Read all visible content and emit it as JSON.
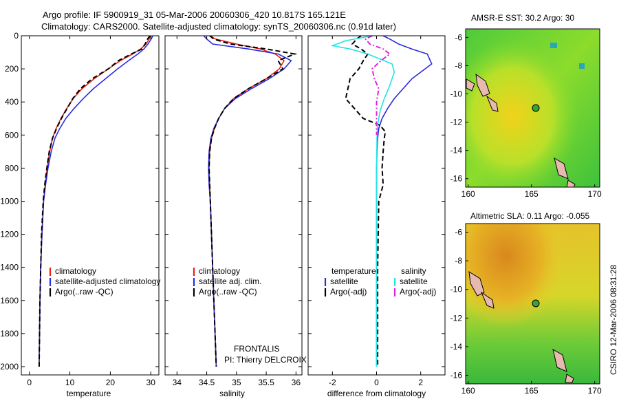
{
  "figure": {
    "title_line1": "Argo profile: IF 5900919_31 05-Mar-2006 20060306_420 10.817S 165.121E",
    "title_line2": "Climatology: CARS2000. Satellite-adjusted climatology: synTS_20060306.nc (0.91d later)",
    "side_stamp": "CSIRO 12-Mar-2006 08:31:28",
    "pi_line1": "FRONTALIS",
    "pi_line2": "PI: Thierry DELCROIX"
  },
  "colors": {
    "climatology": "#e8200f",
    "satellite": "#2a2ae0",
    "argo": "#000000",
    "sat_salinity": "#22e4e4",
    "argo_salinity": "#e020e0"
  },
  "chart_data": [
    {
      "type": "line",
      "xlabel": "temperature",
      "xlim": [
        -2,
        32
      ],
      "ylim": [
        0,
        2050
      ],
      "xticks": [
        0,
        10,
        20,
        30
      ],
      "yticks": [
        0,
        200,
        400,
        600,
        800,
        1000,
        1200,
        1400,
        1600,
        1800,
        2000
      ],
      "legend_position": "lower-center",
      "series": [
        {
          "name": "climatology",
          "color": "#e8200f",
          "dash": "",
          "x": [
            30.0,
            29.6,
            28.8,
            27.5,
            25.5,
            22.5,
            19.5,
            16.0,
            13.0,
            10.8,
            9.2,
            7.8,
            6.6,
            5.7,
            5.0,
            4.4,
            3.9,
            3.5,
            3.1,
            2.8,
            2.6,
            2.5,
            2.4
          ],
          "y": [
            0,
            20,
            50,
            80,
            110,
            150,
            200,
            260,
            320,
            380,
            440,
            500,
            560,
            620,
            700,
            800,
            900,
            1000,
            1200,
            1400,
            1600,
            1800,
            2000
          ]
        },
        {
          "name": "satellite-adjusted climatology",
          "color": "#2a2ae0",
          "dash": "",
          "x": [
            30.5,
            30.1,
            29.3,
            28.3,
            26.8,
            24.5,
            21.8,
            18.8,
            15.8,
            13.3,
            11.0,
            9.0,
            7.5,
            6.3,
            5.4,
            4.6,
            4.0,
            3.5,
            3.1,
            2.8,
            2.6,
            2.5,
            2.4
          ],
          "y": [
            0,
            20,
            50,
            80,
            110,
            150,
            200,
            260,
            320,
            380,
            440,
            500,
            560,
            620,
            700,
            800,
            900,
            1000,
            1200,
            1400,
            1600,
            1800,
            2000
          ]
        },
        {
          "name": "Argo(..raw -QC)",
          "color": "#000000",
          "dash": "7,4",
          "x": [
            29.8,
            29.2,
            28.6,
            27.8,
            25.2,
            22.0,
            19.5,
            15.5,
            12.6,
            10.7,
            9.3,
            7.9,
            6.7,
            5.7,
            4.9,
            4.3,
            3.8,
            3.4,
            3.0,
            2.8,
            2.6,
            2.5,
            2.4
          ],
          "y": [
            0,
            20,
            50,
            80,
            110,
            150,
            200,
            260,
            320,
            380,
            440,
            500,
            560,
            620,
            700,
            800,
            900,
            1000,
            1200,
            1400,
            1600,
            1800,
            2000
          ]
        }
      ]
    },
    {
      "type": "line",
      "xlabel": "salinity",
      "xlim": [
        33.8,
        36.1
      ],
      "ylim": [
        0,
        2050
      ],
      "xticks": [
        34,
        34.5,
        35,
        35.5,
        36
      ],
      "xtick_labels": [
        "34",
        "34.5",
        "35",
        "35.5",
        "36"
      ],
      "yticks": [
        0,
        200,
        400,
        600,
        800,
        1000,
        1200,
        1400,
        1600,
        1800,
        2000
      ],
      "legend_position": "lower-center",
      "series": [
        {
          "name": "climatology",
          "color": "#e8200f",
          "dash": "",
          "x": [
            34.55,
            34.65,
            35.0,
            35.4,
            35.65,
            35.8,
            35.72,
            35.5,
            35.2,
            34.95,
            34.8,
            34.7,
            34.63,
            34.58,
            34.55,
            34.54,
            34.55,
            34.56,
            34.58,
            34.6,
            34.62,
            34.64,
            34.66
          ],
          "y": [
            0,
            20,
            50,
            80,
            110,
            150,
            200,
            260,
            320,
            380,
            440,
            500,
            560,
            620,
            700,
            800,
            900,
            1000,
            1200,
            1400,
            1600,
            1800,
            2000
          ]
        },
        {
          "name": "satellite adj. clim.",
          "color": "#2a2ae0",
          "dash": "",
          "x": [
            34.45,
            34.5,
            34.6,
            35.2,
            35.7,
            35.92,
            35.8,
            35.55,
            35.25,
            34.98,
            34.8,
            34.7,
            34.62,
            34.57,
            34.54,
            34.53,
            34.54,
            34.56,
            34.58,
            34.6,
            34.62,
            34.64,
            34.66
          ],
          "y": [
            0,
            20,
            50,
            80,
            110,
            150,
            200,
            260,
            320,
            380,
            440,
            500,
            560,
            620,
            700,
            800,
            900,
            1000,
            1200,
            1400,
            1600,
            1800,
            2000
          ]
        },
        {
          "name": "Argo(..raw -QC)",
          "color": "#000000",
          "dash": "7,4",
          "x": [
            34.55,
            34.62,
            34.9,
            35.5,
            35.98,
            35.7,
            35.78,
            35.5,
            35.2,
            34.95,
            34.8,
            34.7,
            34.63,
            34.58,
            34.55,
            34.54,
            34.55,
            34.56,
            34.58,
            34.6,
            34.62,
            34.64,
            34.66
          ],
          "y": [
            0,
            20,
            50,
            80,
            110,
            150,
            200,
            260,
            320,
            380,
            440,
            500,
            560,
            620,
            700,
            800,
            900,
            1000,
            1200,
            1400,
            1600,
            1800,
            2000
          ]
        }
      ]
    },
    {
      "type": "line",
      "xlabel": "difference from climatology",
      "xlim": [
        -3.1,
        3.1
      ],
      "ylim": [
        0,
        2050
      ],
      "xticks": [
        -2,
        0,
        2
      ],
      "yticks": [
        0,
        200,
        400,
        600,
        800,
        1000,
        1200,
        1400,
        1600,
        1800,
        2000
      ],
      "legend_position": "lower-center",
      "legend_headers": [
        "temperature",
        "salinity"
      ],
      "series": [
        {
          "name": "satellite",
          "group": "temperature",
          "color": "#2a2ae0",
          "dash": "",
          "x": [
            0.3,
            0.6,
            1.0,
            1.6,
            2.3,
            2.5,
            2.0,
            1.6,
            1.2,
            0.8,
            0.5,
            0.25,
            0.1,
            0.05,
            0.02,
            0.0,
            0.0,
            0.0,
            0.0,
            0.0,
            0.0
          ],
          "y": [
            0,
            20,
            50,
            80,
            110,
            170,
            220,
            260,
            320,
            380,
            440,
            500,
            560,
            620,
            700,
            800,
            900,
            1000,
            1400,
            1800,
            2000
          ]
        },
        {
          "name": "Argo(-adj)",
          "group": "temperature",
          "color": "#000000",
          "dash": "7,4",
          "x": [
            -0.7,
            -0.9,
            -1.1,
            -0.7,
            -0.4,
            -0.6,
            -0.8,
            -1.2,
            -1.3,
            -1.4,
            -1.0,
            -0.6,
            0.15,
            0.4,
            0.35,
            0.3,
            0.25,
            0.3,
            0.1,
            0.05,
            0.05,
            0.05
          ],
          "y": [
            0,
            20,
            50,
            80,
            110,
            150,
            200,
            260,
            320,
            380,
            440,
            500,
            540,
            580,
            620,
            700,
            800,
            900,
            1000,
            1400,
            1800,
            2000
          ]
        },
        {
          "name": "satellite",
          "group": "salinity",
          "color": "#22e4e4",
          "dash": "",
          "x": [
            -0.2,
            -1.4,
            -2.0,
            -1.2,
            -0.4,
            0.7,
            0.8,
            0.6,
            0.35,
            0.15,
            0.05,
            0.02,
            0.0,
            0.0,
            0.0
          ],
          "y": [
            0,
            30,
            60,
            80,
            110,
            170,
            220,
            300,
            380,
            460,
            540,
            620,
            800,
            1400,
            2000
          ]
        },
        {
          "name": "Argo(-adj)",
          "group": "salinity",
          "color": "#e020e0",
          "dash": "7,3,2,3",
          "x": [
            -0.2,
            -0.5,
            -0.3,
            0.3,
            0.6,
            0.2,
            -0.2,
            -0.1,
            0.1,
            0.0,
            0.0,
            0.0
          ],
          "y": [
            0,
            20,
            50,
            80,
            110,
            150,
            200,
            260,
            320,
            400,
            500,
            600
          ]
        }
      ]
    },
    {
      "type": "heatmap",
      "title": "AMSR-E SST: 30.2 Argo: 30",
      "xticks": [
        160,
        165,
        170
      ],
      "yticks": [
        -6,
        -8,
        -10,
        -12,
        -14,
        -16
      ],
      "xlim": [
        159.8,
        170.4
      ],
      "ylim": [
        -16.6,
        -5.4
      ],
      "marker": {
        "lon": 165.121,
        "lat": -10.817
      }
    },
    {
      "type": "heatmap",
      "title": "Altimetric SLA: 0.11 Argo: -0.055",
      "xticks": [
        160,
        165,
        170
      ],
      "yticks": [
        -6,
        -8,
        -10,
        -12,
        -14,
        -16
      ],
      "xlim": [
        159.8,
        170.4
      ],
      "ylim": [
        -16.6,
        -5.4
      ],
      "marker": {
        "lon": 165.121,
        "lat": -10.817
      }
    }
  ]
}
